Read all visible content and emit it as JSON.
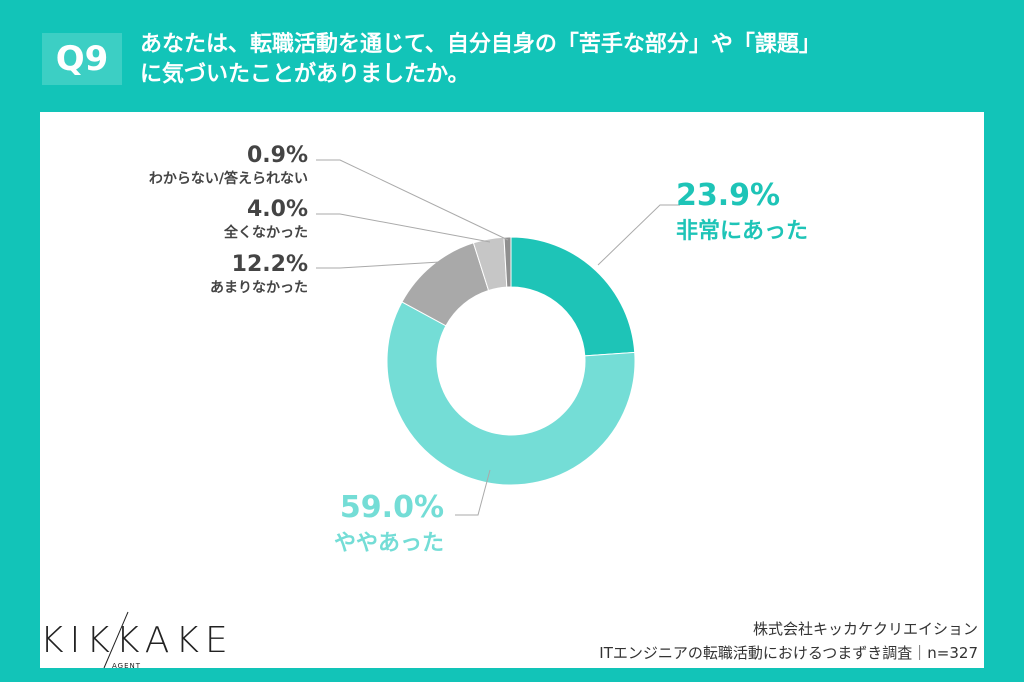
{
  "header": {
    "question_number": "Q9",
    "question_line1": "あなたは、転職活動を通じて、自分自身の「苦手な部分」や「課題」",
    "question_line2": "に気づいたことがありましたか。"
  },
  "chart_data": {
    "type": "pie",
    "donut": true,
    "categories": [
      "非常にあった",
      "ややあった",
      "あまりなかった",
      "全くなかった",
      "わからない/答えられない"
    ],
    "values": [
      23.9,
      59.0,
      12.2,
      4.0,
      0.9
    ],
    "value_labels": [
      "23.9%",
      "59.0%",
      "12.2%",
      "4.0%",
      "0.9%"
    ],
    "colors": [
      "#1ec4b7",
      "#74ddd6",
      "#a9a9a9",
      "#c6c6c6",
      "#8f8f8f"
    ],
    "start": "top",
    "direction": "clockwise"
  },
  "footer": {
    "logo": "KIKKAKE",
    "logo_sub": "AGENT",
    "company": "株式会社キッカケクリエイション",
    "survey": "ITエンジニアの転職活動におけるつまずき調査｜n=327"
  }
}
